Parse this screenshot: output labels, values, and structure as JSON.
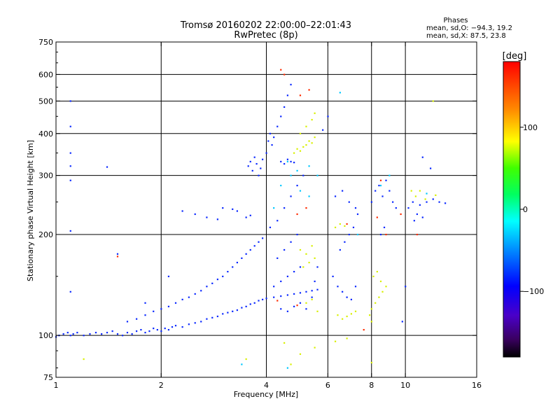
{
  "chart_data": {
    "type": "scatter",
    "title": "Tromsø 20160202 22:00:00–22:01:43",
    "subtitle": "RwPretec (8p)",
    "xlabel": "Frequency [MHz]",
    "ylabel": "Stationary phase Virtual Height [km]",
    "xscale": "log",
    "yscale": "log",
    "xlim": [
      1,
      16
    ],
    "ylim": [
      75,
      750
    ],
    "xticks": [
      "1",
      "2",
      "4",
      "6",
      "8",
      "10",
      "16"
    ],
    "xtick_values": [
      1,
      2,
      4,
      6,
      8,
      10,
      16
    ],
    "yticks": [
      "75",
      "100",
      "200",
      "300",
      "400",
      "500",
      "600",
      "750"
    ],
    "ytick_values": [
      75,
      100,
      200,
      300,
      400,
      500,
      600,
      750
    ],
    "grid": true,
    "grid_x": [
      2,
      4,
      6,
      8,
      10
    ],
    "grid_y": [
      100,
      200,
      300,
      400,
      500,
      600
    ],
    "phase_stats": {
      "heading": "Phases",
      "line_o": "mean, sd,O: −94.3, 19.2",
      "line_x": "mean, sd,X:  87.5, 23.8"
    },
    "colorbar": {
      "label": "[deg]",
      "range": [
        -180,
        180
      ],
      "tick_labels": [
        "100",
        "0",
        "−100"
      ],
      "tick_values": [
        100,
        0,
        -100
      ],
      "colormap": "rainbow"
    },
    "series": [
      {
        "points": [
          [
            1.0,
            99
          ],
          [
            1.02,
            100
          ],
          [
            1.05,
            101
          ],
          [
            1.08,
            102
          ],
          [
            1.1,
            100
          ],
          [
            1.12,
            101
          ],
          [
            1.15,
            102
          ],
          [
            1.2,
            100
          ],
          [
            1.25,
            101
          ],
          [
            1.3,
            102
          ],
          [
            1.35,
            101
          ],
          [
            1.4,
            102
          ],
          [
            1.45,
            103
          ],
          [
            1.5,
            101
          ],
          [
            1.55,
            100
          ],
          [
            1.6,
            102
          ],
          [
            1.65,
            101
          ],
          [
            1.7,
            103
          ],
          [
            1.75,
            104
          ],
          [
            1.8,
            102
          ],
          [
            1.85,
            103
          ],
          [
            1.9,
            105
          ],
          [
            1.95,
            104
          ],
          [
            2.0,
            103
          ],
          [
            2.05,
            105
          ],
          [
            2.1,
            104
          ],
          [
            2.15,
            106
          ],
          [
            2.2,
            107
          ],
          [
            2.3,
            106
          ],
          [
            2.4,
            108
          ],
          [
            2.5,
            109
          ],
          [
            2.6,
            110
          ],
          [
            2.7,
            112
          ],
          [
            2.8,
            113
          ],
          [
            2.9,
            114
          ],
          [
            3.0,
            116
          ],
          [
            3.1,
            117
          ],
          [
            3.2,
            118
          ],
          [
            3.3,
            119
          ],
          [
            3.4,
            121
          ],
          [
            3.5,
            122
          ],
          [
            3.6,
            124
          ],
          [
            3.7,
            125
          ],
          [
            3.8,
            127
          ],
          [
            3.9,
            128
          ],
          [
            4.0,
            129
          ],
          [
            4.2,
            130
          ],
          [
            4.4,
            131
          ],
          [
            4.6,
            132
          ],
          [
            4.8,
            133
          ],
          [
            5.0,
            134
          ],
          [
            5.2,
            135
          ],
          [
            5.4,
            136
          ],
          [
            5.6,
            137
          ],
          [
            1.6,
            110
          ],
          [
            1.7,
            112
          ],
          [
            1.8,
            115
          ],
          [
            1.9,
            118
          ],
          [
            2.0,
            120
          ],
          [
            2.1,
            122
          ],
          [
            2.2,
            125
          ],
          [
            2.3,
            128
          ],
          [
            2.4,
            130
          ],
          [
            2.5,
            133
          ],
          [
            2.6,
            136
          ],
          [
            2.7,
            140
          ],
          [
            2.8,
            143
          ],
          [
            2.9,
            147
          ],
          [
            3.0,
            150
          ],
          [
            3.1,
            155
          ],
          [
            3.2,
            160
          ],
          [
            3.3,
            165
          ],
          [
            3.4,
            170
          ],
          [
            3.5,
            175
          ],
          [
            3.6,
            180
          ],
          [
            3.7,
            185
          ],
          [
            3.8,
            190
          ],
          [
            3.9,
            195
          ],
          [
            2.3,
            235
          ],
          [
            2.5,
            230
          ],
          [
            2.7,
            225
          ],
          [
            2.9,
            222
          ],
          [
            3.0,
            240
          ],
          [
            3.2,
            238
          ],
          [
            3.3,
            235
          ],
          [
            3.5,
            225
          ],
          [
            3.6,
            228
          ],
          [
            3.55,
            320
          ],
          [
            3.6,
            330
          ],
          [
            3.65,
            310
          ],
          [
            3.7,
            340
          ],
          [
            3.75,
            325
          ],
          [
            3.8,
            300
          ],
          [
            3.85,
            315
          ],
          [
            3.9,
            335
          ],
          [
            4.0,
            350
          ],
          [
            4.05,
            380
          ],
          [
            4.1,
            400
          ],
          [
            4.15,
            370
          ],
          [
            4.2,
            390
          ],
          [
            4.3,
            420
          ],
          [
            4.4,
            450
          ],
          [
            4.5,
            480
          ],
          [
            4.6,
            520
          ],
          [
            4.7,
            560
          ],
          [
            4.4,
            330
          ],
          [
            4.5,
            325
          ],
          [
            4.6,
            335
          ],
          [
            4.7,
            330
          ],
          [
            4.8,
            328
          ],
          [
            4.2,
            140
          ],
          [
            4.4,
            145
          ],
          [
            4.6,
            150
          ],
          [
            4.8,
            155
          ],
          [
            5.0,
            160
          ],
          [
            4.3,
            170
          ],
          [
            4.5,
            180
          ],
          [
            4.7,
            190
          ],
          [
            4.9,
            200
          ],
          [
            4.1,
            210
          ],
          [
            4.3,
            220
          ],
          [
            4.5,
            240
          ],
          [
            4.7,
            260
          ],
          [
            4.9,
            280
          ],
          [
            5.1,
            300
          ],
          [
            4.4,
            120
          ],
          [
            4.6,
            118
          ],
          [
            4.8,
            122
          ],
          [
            5.0,
            125
          ],
          [
            5.2,
            120
          ],
          [
            5.4,
            130
          ],
          [
            5.5,
            145
          ],
          [
            5.6,
            160
          ],
          [
            6.2,
            150
          ],
          [
            6.4,
            140
          ],
          [
            6.6,
            135
          ],
          [
            6.8,
            130
          ],
          [
            7.0,
            128
          ],
          [
            7.2,
            140
          ],
          [
            6.5,
            180
          ],
          [
            6.7,
            190
          ],
          [
            6.9,
            200
          ],
          [
            7.1,
            210
          ],
          [
            7.3,
            230
          ],
          [
            6.3,
            260
          ],
          [
            6.6,
            270
          ],
          [
            6.9,
            250
          ],
          [
            7.2,
            240
          ],
          [
            8.0,
            250
          ],
          [
            8.2,
            270
          ],
          [
            8.4,
            280
          ],
          [
            8.6,
            260
          ],
          [
            8.8,
            290
          ],
          [
            9.0,
            270
          ],
          [
            9.2,
            250
          ],
          [
            9.4,
            240
          ],
          [
            8.5,
            200
          ],
          [
            8.7,
            210
          ],
          [
            10.2,
            240
          ],
          [
            10.5,
            250
          ],
          [
            10.8,
            230
          ],
          [
            11.0,
            245
          ],
          [
            11.5,
            250
          ],
          [
            12.0,
            255
          ],
          [
            12.5,
            250
          ],
          [
            13.0,
            248
          ],
          [
            10.6,
            220
          ],
          [
            11.2,
            225
          ],
          [
            1.1,
            500
          ],
          [
            1.1,
            420
          ],
          [
            1.1,
            350
          ],
          [
            1.1,
            320
          ],
          [
            1.1,
            290
          ],
          [
            1.1,
            205
          ],
          [
            1.1,
            135
          ],
          [
            1.4,
            318
          ],
          [
            1.5,
            175
          ],
          [
            1.8,
            125
          ],
          [
            2.1,
            150
          ],
          [
            9.8,
            110
          ],
          [
            10.0,
            140
          ],
          [
            11.2,
            340
          ],
          [
            11.8,
            315
          ],
          [
            5.8,
            410
          ],
          [
            6.0,
            450
          ]
        ]
      },
      {
        "points": [
          [
            4.8,
            350
          ],
          [
            4.9,
            360
          ],
          [
            5.0,
            355
          ],
          [
            5.1,
            365
          ],
          [
            5.2,
            370
          ],
          [
            5.3,
            380
          ],
          [
            5.4,
            375
          ],
          [
            5.5,
            390
          ],
          [
            5.0,
            400
          ],
          [
            5.2,
            420
          ],
          [
            5.4,
            440
          ],
          [
            5.5,
            460
          ],
          [
            5.0,
            180
          ],
          [
            5.2,
            175
          ],
          [
            5.4,
            185
          ],
          [
            5.1,
            160
          ],
          [
            5.3,
            165
          ],
          [
            5.5,
            170
          ],
          [
            5.2,
            125
          ],
          [
            5.4,
            128
          ],
          [
            5.6,
            118
          ],
          [
            6.4,
            115
          ],
          [
            6.6,
            112
          ],
          [
            6.8,
            114
          ],
          [
            7.0,
            116
          ],
          [
            7.2,
            118
          ],
          [
            6.3,
            210
          ],
          [
            6.5,
            215
          ],
          [
            6.7,
            212
          ],
          [
            8.0,
            120
          ],
          [
            8.2,
            125
          ],
          [
            8.4,
            130
          ],
          [
            8.6,
            135
          ],
          [
            8.8,
            140
          ],
          [
            8.1,
            150
          ],
          [
            8.3,
            155
          ],
          [
            8.5,
            145
          ],
          [
            7.9,
            115
          ],
          [
            8.0,
            110
          ],
          [
            10.4,
            270
          ],
          [
            10.7,
            260
          ],
          [
            11.0,
            270
          ],
          [
            11.4,
            255
          ],
          [
            12.2,
            262
          ],
          [
            4.5,
            95
          ],
          [
            5.0,
            88
          ],
          [
            5.5,
            92
          ],
          [
            6.3,
            96
          ],
          [
            6.8,
            98
          ],
          [
            1.2,
            85
          ],
          [
            3.5,
            85
          ],
          [
            4.7,
            82
          ],
          [
            8.0,
            83
          ],
          [
            12.0,
            500
          ]
        ]
      },
      {
        "points": [
          [
            4.7,
            300
          ],
          [
            4.9,
            310
          ],
          [
            5.3,
            320
          ],
          [
            5.6,
            300
          ],
          [
            4.6,
            330
          ],
          [
            4.4,
            280
          ],
          [
            5.0,
            270
          ],
          [
            5.3,
            260
          ],
          [
            4.2,
            240
          ],
          [
            6.5,
            530
          ],
          [
            7.3,
            200
          ],
          [
            8.5,
            280
          ],
          [
            9.0,
            300
          ],
          [
            11.5,
            265
          ],
          [
            3.4,
            82
          ],
          [
            4.6,
            80
          ]
        ]
      },
      {
        "points": [
          [
            4.4,
            620
          ],
          [
            4.5,
            600
          ],
          [
            5.0,
            520
          ],
          [
            5.3,
            540
          ],
          [
            4.9,
            230
          ],
          [
            5.2,
            240
          ],
          [
            6.8,
            215
          ],
          [
            8.3,
            225
          ],
          [
            8.8,
            200
          ],
          [
            9.7,
            230
          ],
          [
            10.8,
            200
          ],
          [
            1.5,
            172
          ],
          [
            4.3,
            127
          ],
          [
            4.9,
            123
          ],
          [
            7.6,
            104
          ],
          [
            8.5,
            290
          ]
        ]
      }
    ]
  }
}
